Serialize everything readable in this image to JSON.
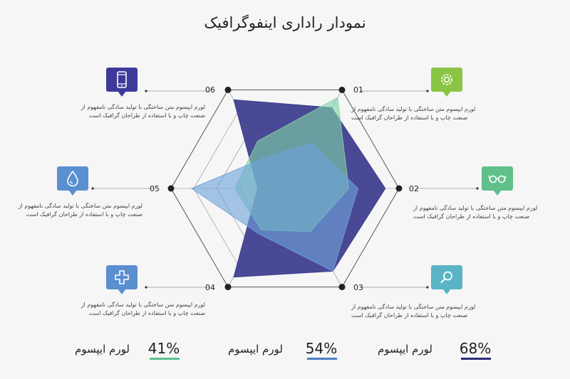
{
  "title": "نمودار راداری اینفوگرافیک",
  "description": "لورم ایپسوم متن ساختگی با تولید سادگی نامفهوم از صنعت چاپ و با استفاده از طراحان گرافیک است",
  "colors": {
    "navy": "#3b3a8c",
    "teal_green": "#7fd3a8",
    "light_blue": "#6ea3d8",
    "green_icon": "#8ac444",
    "mint_icon": "#5fc08a",
    "cyan_icon": "#5ab4c6",
    "blue_icon": "#5a8fd0",
    "purple_icon": "#3e3a9a"
  },
  "chart_data": {
    "type": "radar",
    "axes": [
      "01",
      "02",
      "03",
      "04",
      "05",
      "06"
    ],
    "rmax": 5,
    "grid": true,
    "series": [
      {
        "color": "#3b3a8c",
        "values": [
          4.1,
          4.4,
          4.2,
          4.5,
          1.2,
          4.5
        ]
      },
      {
        "color": "#7fd3a8",
        "values": [
          4.6,
          2.8,
          2.2,
          2.1,
          2.2,
          2.4
        ]
      },
      {
        "color": "#6ea3d8",
        "values": [
          2.3,
          3.2,
          4.2,
          2.3,
          4.1,
          1.6
        ]
      }
    ]
  },
  "icons": [
    {
      "axis": "01",
      "name": "gear-icon",
      "color": "#8ac444"
    },
    {
      "axis": "02",
      "name": "glasses-icon",
      "color": "#5fc08a"
    },
    {
      "axis": "03",
      "name": "magnifier-icon",
      "color": "#5ab4c6"
    },
    {
      "axis": "04",
      "name": "medical-cross-icon",
      "color": "#5a8fd0"
    },
    {
      "axis": "05",
      "name": "water-drop-icon",
      "color": "#5a8fd0"
    },
    {
      "axis": "06",
      "name": "mobile-phone-icon",
      "color": "#3e3a9a"
    }
  ],
  "stats": [
    {
      "percent": "68%",
      "label": "لورم ایپسوم",
      "color": "#2d2a7a"
    },
    {
      "percent": "54%",
      "label": "لورم ایپسوم",
      "color": "#4b7fc2"
    },
    {
      "percent": "41%",
      "label": "لورم ایپسوم",
      "color": "#5bbf8e"
    }
  ]
}
